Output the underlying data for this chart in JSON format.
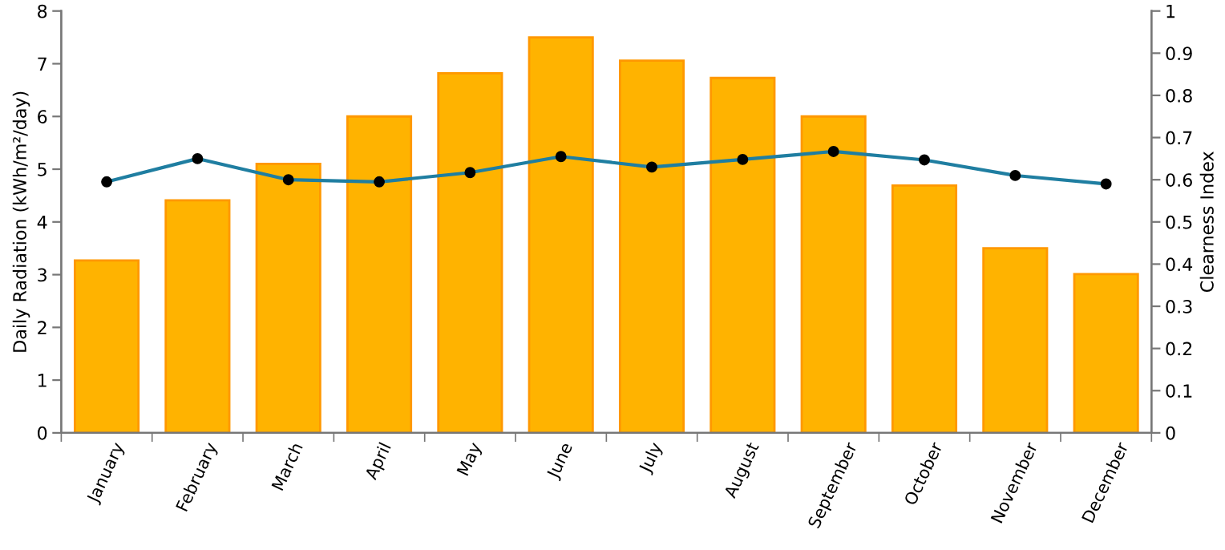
{
  "chart_data": {
    "type": "bar",
    "categories": [
      "January",
      "February",
      "March",
      "April",
      "May",
      "June",
      "July",
      "August",
      "September",
      "October",
      "November",
      "December"
    ],
    "ylabel": "Daily Radiation (kWh/m²/day)",
    "y2label": "Clearness Index",
    "series": [
      {
        "color": "#ffb300",
        "values": [
          3.27,
          4.41,
          5.1,
          6.0,
          6.82,
          7.5,
          7.06,
          6.73,
          6.0,
          4.69,
          3.5,
          3.01
        ]
      },
      {
        "type": "line",
        "axis": "y2",
        "color": "#1f7ea1",
        "marker": "circle",
        "values": [
          0.595,
          0.65,
          0.6,
          0.595,
          0.617,
          0.655,
          0.63,
          0.648,
          0.667,
          0.647,
          0.61,
          0.59
        ]
      }
    ],
    "ylim": [
      0,
      8
    ],
    "yticks": [
      0,
      1,
      2,
      3,
      4,
      5,
      6,
      7,
      8
    ],
    "y2lim": [
      0,
      1
    ],
    "y2ticks": [
      0,
      0.1,
      0.2,
      0.3,
      0.4,
      0.5,
      0.6,
      0.7,
      0.8,
      0.9,
      1
    ],
    "grid": false,
    "legend": false
  }
}
